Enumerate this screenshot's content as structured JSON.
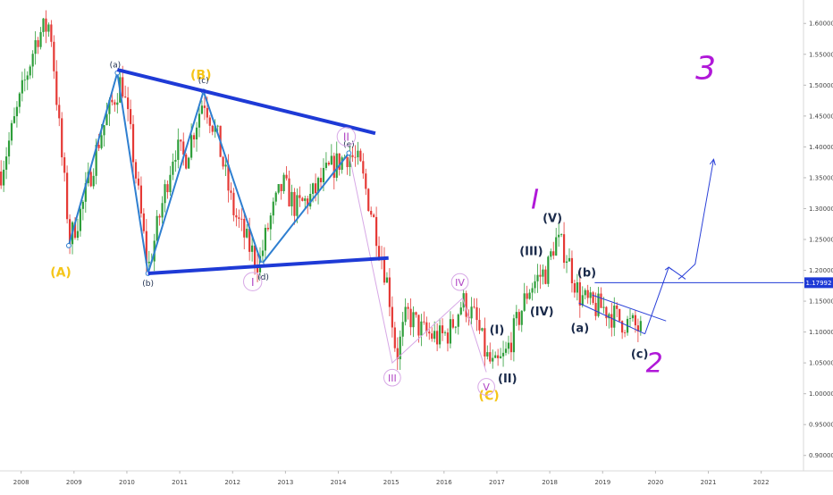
{
  "chart_data": {
    "type": "candlestick",
    "title": "",
    "xlabel": "",
    "ylabel": "",
    "x_ticks": [
      "2008",
      "2009",
      "2010",
      "2011",
      "2012",
      "2013",
      "2014",
      "2015",
      "2016",
      "2017",
      "2018",
      "2019",
      "2020",
      "2021",
      "2022"
    ],
    "y_ticks": [
      "1.60000",
      "1.55000",
      "1.50000",
      "1.45000",
      "1.40000",
      "1.35000",
      "1.30000",
      "1.25000",
      "1.20000",
      "1.15000",
      "1.10000",
      "1.05000",
      "1.00000",
      "0.95000",
      "0.90000"
    ],
    "xlim": [
      2007.6,
      2022.8
    ],
    "ylim": [
      0.875,
      1.638
    ],
    "current_price": {
      "label": "1.17992",
      "value": 1.17992,
      "color": "#1e3ad6"
    },
    "price_line_color": "#1e3ad6",
    "grid": false,
    "series": [
      {
        "values_note_removed": true,
        "key_points": [
          [
            2007.62,
            1.36
          ],
          [
            2007.9,
            1.45
          ],
          [
            2008.3,
            1.58
          ],
          [
            2008.55,
            1.6
          ],
          [
            2008.75,
            1.4
          ],
          [
            2008.92,
            1.25
          ],
          [
            2009.15,
            1.3
          ],
          [
            2009.5,
            1.42
          ],
          [
            2009.9,
            1.51
          ],
          [
            2010.1,
            1.4
          ],
          [
            2010.4,
            1.2
          ],
          [
            2010.6,
            1.28
          ],
          [
            2010.9,
            1.4
          ],
          [
            2011.1,
            1.38
          ],
          [
            2011.45,
            1.48
          ],
          [
            2011.7,
            1.42
          ],
          [
            2012.0,
            1.3
          ],
          [
            2012.3,
            1.24
          ],
          [
            2012.5,
            1.21
          ],
          [
            2012.7,
            1.28
          ],
          [
            2012.95,
            1.34
          ],
          [
            2013.2,
            1.3
          ],
          [
            2013.5,
            1.32
          ],
          [
            2013.8,
            1.36
          ],
          [
            2014.2,
            1.39
          ],
          [
            2014.4,
            1.37
          ],
          [
            2014.7,
            1.27
          ],
          [
            2014.95,
            1.17
          ],
          [
            2015.1,
            1.06
          ],
          [
            2015.3,
            1.13
          ],
          [
            2015.6,
            1.1
          ],
          [
            2015.9,
            1.09
          ],
          [
            2016.1,
            1.1
          ],
          [
            2016.35,
            1.15
          ],
          [
            2016.6,
            1.12
          ],
          [
            2016.8,
            1.06
          ],
          [
            2016.95,
            1.04
          ],
          [
            2017.15,
            1.06
          ],
          [
            2017.4,
            1.12
          ],
          [
            2017.6,
            1.17
          ],
          [
            2017.8,
            1.19
          ],
          [
            2017.95,
            1.2
          ],
          [
            2018.1,
            1.25
          ],
          [
            2018.3,
            1.23
          ],
          [
            2018.55,
            1.16
          ],
          [
            2018.8,
            1.14
          ],
          [
            2019.0,
            1.14
          ],
          [
            2019.3,
            1.12
          ],
          [
            2019.6,
            1.11
          ],
          [
            2019.75,
            1.1
          ]
        ]
      }
    ],
    "wave_labels": [
      {
        "text": "(A)",
        "x": 2008.75,
        "y": 1.19,
        "color": "#f5c518",
        "size": 14
      },
      {
        "text": "(B)",
        "x": 2011.4,
        "y": 1.51,
        "color": "#f5c518",
        "size": 14
      },
      {
        "text": "(C)",
        "x": 2016.85,
        "y": 0.99,
        "color": "#f5c518",
        "size": 14
      },
      {
        "text": "(a)",
        "x": 2009.78,
        "y": 1.529,
        "color": "#1a2a4a",
        "size": 9
      },
      {
        "text": "(b)",
        "x": 2010.4,
        "y": 1.175,
        "color": "#1a2a4a",
        "size": 9
      },
      {
        "text": "(c)",
        "x": 2011.45,
        "y": 1.503,
        "color": "#1a2a4a",
        "size": 9
      },
      {
        "text": "(d)",
        "x": 2012.58,
        "y": 1.185,
        "color": "#1a2a4a",
        "size": 9
      },
      {
        "text": "(e)",
        "x": 2014.2,
        "y": 1.4,
        "color": "#1a2a4a",
        "size": 9
      },
      {
        "text": "I",
        "x": 2012.38,
        "y": 1.175,
        "color": "#b044c4",
        "size": 12
      },
      {
        "text": "II",
        "x": 2014.15,
        "y": 1.41,
        "color": "#b044c4",
        "size": 12
      },
      {
        "text": "III",
        "x": 2015.02,
        "y": 1.02,
        "color": "#b044c4",
        "size": 11
      },
      {
        "text": "IV",
        "x": 2016.3,
        "y": 1.175,
        "color": "#b044c4",
        "size": 11
      },
      {
        "text": "V",
        "x": 2016.8,
        "y": 1.005,
        "color": "#b044c4",
        "size": 11
      },
      {
        "text": "(I)",
        "x": 2017.0,
        "y": 1.097,
        "color": "#1a2a4a",
        "size": 13
      },
      {
        "text": "(II)",
        "x": 2017.2,
        "y": 1.018,
        "color": "#1a2a4a",
        "size": 13
      },
      {
        "text": "(III)",
        "x": 2017.65,
        "y": 1.225,
        "color": "#1a2a4a",
        "size": 13
      },
      {
        "text": "(IV)",
        "x": 2017.85,
        "y": 1.127,
        "color": "#1a2a4a",
        "size": 13
      },
      {
        "text": "(V)",
        "x": 2018.05,
        "y": 1.278,
        "color": "#1a2a4a",
        "size": 13
      },
      {
        "text": "(b)",
        "x": 2018.7,
        "y": 1.19,
        "color": "#1a2a4a",
        "size": 13
      },
      {
        "text": "(a)",
        "x": 2018.57,
        "y": 1.1,
        "color": "#1a2a4a",
        "size": 13
      },
      {
        "text": "(c)",
        "x": 2019.7,
        "y": 1.058,
        "color": "#1a2a4a",
        "size": 13
      }
    ],
    "handwritten": [
      {
        "text": "I",
        "x": 2017.72,
        "y": 1.3,
        "color": "#b018d8",
        "size": 30
      },
      {
        "text": "2",
        "x": 2019.98,
        "y": 1.035,
        "color": "#b018d8",
        "size": 30
      },
      {
        "text": "3",
        "x": 2020.95,
        "y": 1.51,
        "color": "#b018d8",
        "size": 36
      }
    ],
    "triangle_upper": [
      [
        2009.82,
        1.525
      ],
      [
        2014.7,
        1.422
      ]
    ],
    "triangle_lower": [
      [
        2010.4,
        1.195
      ],
      [
        2014.95,
        1.22
      ]
    ],
    "zigzag_abcde": [
      [
        2008.9,
        1.24
      ],
      [
        2009.82,
        1.52
      ],
      [
        2010.4,
        1.195
      ],
      [
        2011.45,
        1.49
      ],
      [
        2012.55,
        1.21
      ],
      [
        2014.2,
        1.39
      ]
    ],
    "wave_trace_purple": [
      [
        2014.2,
        1.39
      ],
      [
        2015.02,
        1.05
      ],
      [
        2016.35,
        1.155
      ],
      [
        2016.8,
        1.035
      ]
    ],
    "channel_upper": [
      [
        2018.8,
        1.16
      ],
      [
        2020.2,
        1.118
      ]
    ],
    "channel_lower": [
      [
        2018.55,
        1.147
      ],
      [
        2019.8,
        1.097
      ]
    ],
    "projection": [
      [
        2019.8,
        1.097
      ],
      [
        2020.25,
        1.205
      ],
      [
        2020.5,
        1.19
      ],
      [
        2020.75,
        1.21
      ],
      [
        2021.1,
        1.38
      ]
    ],
    "price_line_start_x": 2018.85
  }
}
